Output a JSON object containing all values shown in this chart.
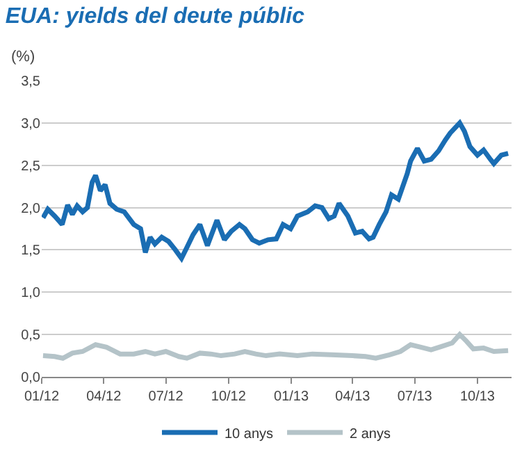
{
  "chart_data": {
    "type": "line",
    "title": "EUA: yields del deute públic",
    "ylabel": "(%)",
    "ylim": [
      0,
      3.5
    ],
    "yticks": [
      {
        "value": 0,
        "label": "0,0"
      },
      {
        "value": 0.5,
        "label": "0,5"
      },
      {
        "value": 1,
        "label": "1,0"
      },
      {
        "value": 1.5,
        "label": "1,5"
      },
      {
        "value": 2,
        "label": "2,0"
      },
      {
        "value": 2.5,
        "label": "2,5"
      },
      {
        "value": 3,
        "label": "3,0"
      },
      {
        "value": 3.5,
        "label": "3,5"
      }
    ],
    "xlim": [
      "2012-01-01",
      "2013-11-20"
    ],
    "xticks": [
      {
        "value": "2012-01-01",
        "label": "01/12"
      },
      {
        "value": "2012-04-01",
        "label": "04/12"
      },
      {
        "value": "2012-07-01",
        "label": "07/12"
      },
      {
        "value": "2012-10-01",
        "label": "10/12"
      },
      {
        "value": "2013-01-01",
        "label": "01/13"
      },
      {
        "value": "2013-04-01",
        "label": "04/13"
      },
      {
        "value": "2013-07-01",
        "label": "07/13"
      },
      {
        "value": "2013-10-01",
        "label": "10/13"
      }
    ],
    "grid": "y",
    "legend": "bottom",
    "marker": "none",
    "line_style": "solid",
    "series": [
      {
        "name": "10 anys",
        "color": "#1a6db3",
        "x": [
          "2012-01-03",
          "2012-01-10",
          "2012-01-20",
          "2012-01-31",
          "2012-02-08",
          "2012-02-15",
          "2012-02-22",
          "2012-03-01",
          "2012-03-08",
          "2012-03-15",
          "2012-03-20",
          "2012-03-27",
          "2012-04-03",
          "2012-04-10",
          "2012-04-20",
          "2012-05-01",
          "2012-05-15",
          "2012-05-25",
          "2012-06-01",
          "2012-06-08",
          "2012-06-15",
          "2012-06-25",
          "2012-07-05",
          "2012-07-15",
          "2012-07-24",
          "2012-08-01",
          "2012-08-10",
          "2012-08-20",
          "2012-08-31",
          "2012-09-14",
          "2012-09-25",
          "2012-10-05",
          "2012-10-17",
          "2012-10-25",
          "2012-11-05",
          "2012-11-15",
          "2012-11-28",
          "2012-12-10",
          "2012-12-20",
          "2012-12-31",
          "2013-01-10",
          "2013-01-25",
          "2013-02-05",
          "2013-02-15",
          "2013-02-25",
          "2013-03-05",
          "2013-03-12",
          "2013-03-25",
          "2013-04-05",
          "2013-04-15",
          "2013-04-25",
          "2013-05-01",
          "2013-05-10",
          "2013-05-20",
          "2013-05-28",
          "2013-06-07",
          "2013-06-20",
          "2013-06-25",
          "2013-07-05",
          "2013-07-15",
          "2013-07-25",
          "2013-08-05",
          "2013-08-15",
          "2013-08-22",
          "2013-09-05",
          "2013-09-12",
          "2013-09-20",
          "2013-10-01",
          "2013-10-10",
          "2013-10-20",
          "2013-10-25",
          "2013-11-05",
          "2013-11-15"
        ],
        "values": [
          1.88,
          1.98,
          1.9,
          1.8,
          2.03,
          1.92,
          2.02,
          1.95,
          2.0,
          2.3,
          2.38,
          2.2,
          2.27,
          2.05,
          1.98,
          1.95,
          1.8,
          1.75,
          1.47,
          1.65,
          1.57,
          1.65,
          1.6,
          1.5,
          1.4,
          1.53,
          1.68,
          1.8,
          1.55,
          1.85,
          1.62,
          1.72,
          1.8,
          1.75,
          1.62,
          1.58,
          1.62,
          1.63,
          1.8,
          1.75,
          1.9,
          1.95,
          2.02,
          2.0,
          1.87,
          1.9,
          2.05,
          1.9,
          1.7,
          1.72,
          1.63,
          1.65,
          1.8,
          1.95,
          2.15,
          2.1,
          2.4,
          2.55,
          2.7,
          2.55,
          2.57,
          2.67,
          2.8,
          2.88,
          3.0,
          2.9,
          2.72,
          2.62,
          2.68,
          2.57,
          2.52,
          2.62,
          2.64
        ]
      },
      {
        "name": "2 anys",
        "color": "#b4c3c8",
        "x": [
          "2012-01-03",
          "2012-01-20",
          "2012-02-01",
          "2012-02-15",
          "2012-03-01",
          "2012-03-20",
          "2012-04-05",
          "2012-04-25",
          "2012-05-15",
          "2012-06-01",
          "2012-06-15",
          "2012-07-01",
          "2012-07-20",
          "2012-08-01",
          "2012-08-20",
          "2012-09-05",
          "2012-09-20",
          "2012-10-10",
          "2012-10-25",
          "2012-11-10",
          "2012-11-25",
          "2012-12-15",
          "2013-01-10",
          "2013-02-01",
          "2013-03-01",
          "2013-04-01",
          "2013-04-20",
          "2013-05-05",
          "2013-05-25",
          "2013-06-10",
          "2013-06-25",
          "2013-07-10",
          "2013-07-25",
          "2013-08-10",
          "2013-08-25",
          "2013-09-05",
          "2013-09-15",
          "2013-09-25",
          "2013-10-10",
          "2013-10-25",
          "2013-11-15"
        ],
        "values": [
          0.25,
          0.24,
          0.22,
          0.28,
          0.3,
          0.38,
          0.35,
          0.27,
          0.27,
          0.3,
          0.27,
          0.3,
          0.24,
          0.22,
          0.28,
          0.27,
          0.25,
          0.27,
          0.3,
          0.27,
          0.25,
          0.27,
          0.25,
          0.27,
          0.26,
          0.25,
          0.24,
          0.22,
          0.26,
          0.3,
          0.38,
          0.35,
          0.32,
          0.36,
          0.4,
          0.5,
          0.42,
          0.33,
          0.34,
          0.3,
          0.31
        ]
      }
    ]
  }
}
